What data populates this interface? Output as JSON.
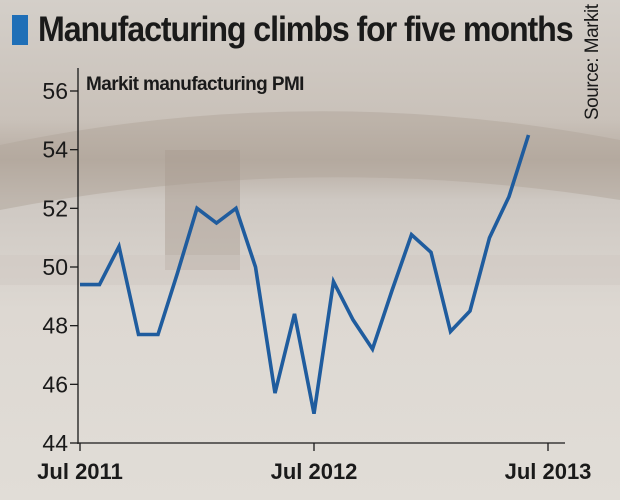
{
  "title": "Manufacturing climbs for five months",
  "source": "Source: Markit",
  "colors": {
    "accent": "#1f6fb7",
    "line": "#1f5c9e",
    "text": "#1a1a1a"
  },
  "chart_data": {
    "type": "line",
    "series": [
      {
        "name": "Markit manufacturing PMI",
        "values": [
          49.4,
          49.4,
          50.7,
          47.7,
          47.7,
          49.8,
          52.0,
          51.5,
          52.0,
          50.0,
          45.7,
          48.4,
          45.0,
          49.5,
          48.2,
          47.2,
          49.2,
          51.1,
          50.5,
          47.8,
          48.5,
          51.0,
          52.4,
          54.5
        ]
      }
    ],
    "x_tick_labels": [
      "Jul 2011",
      "Jul 2012",
      "Jul 2013"
    ],
    "x_tick_index": [
      0,
      12,
      24
    ],
    "yticks": [
      44,
      46,
      48,
      50,
      52,
      54,
      56
    ],
    "ylim": [
      44,
      56
    ],
    "grid": false,
    "legend": "none"
  }
}
